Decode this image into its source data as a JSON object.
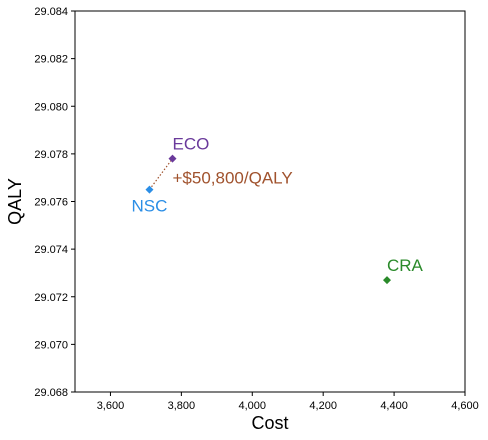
{
  "chart_data": {
    "type": "scatter",
    "title": "",
    "xlabel": "Cost",
    "ylabel": "QALY",
    "xlim": [
      3500,
      4600
    ],
    "ylim": [
      29.068,
      29.084
    ],
    "x_ticks": [
      3600,
      3800,
      4000,
      4200,
      4400,
      4600
    ],
    "x_tick_labels": [
      "3,600",
      "3,800",
      "4,000",
      "4,200",
      "4,400",
      "4,600"
    ],
    "y_ticks": [
      29.068,
      29.07,
      29.072,
      29.074,
      29.076,
      29.078,
      29.08,
      29.082,
      29.084
    ],
    "y_tick_labels": [
      "29.068",
      "29.070",
      "29.072",
      "29.074",
      "29.076",
      "29.078",
      "29.080",
      "29.082",
      "29.084"
    ],
    "grid": false,
    "points": [
      {
        "label": "NSC",
        "x": 3710,
        "y": 29.0765,
        "color": "#2b8ee6",
        "label_pos": "below-left"
      },
      {
        "label": "ECO",
        "x": 3775,
        "y": 29.0778,
        "color": "#6a3a9b",
        "label_pos": "above-right"
      },
      {
        "label": "CRA",
        "x": 4380,
        "y": 29.0727,
        "color": "#2a8a2a",
        "label_pos": "above-right"
      }
    ],
    "connector": {
      "from": "NSC",
      "to": "ECO",
      "style": "dotted",
      "color": "#a0522d"
    },
    "annotations": [
      {
        "text": "+$50,800/QALY",
        "color": "#a0522d",
        "near": "ECO"
      }
    ]
  }
}
